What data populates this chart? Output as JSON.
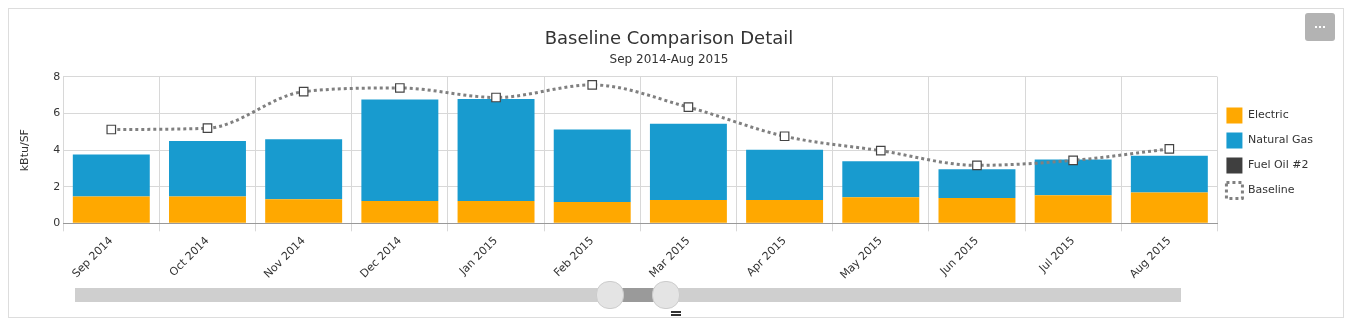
{
  "chart_data": {
    "type": "bar",
    "title": "Baseline Comparison Detail",
    "subtitle": "Sep 2014-Aug 2015",
    "ylabel": "kBtu/SF",
    "categories": [
      "Sep 2014",
      "Oct 2014",
      "Nov 2014",
      "Dec 2014",
      "Jan 2015",
      "Feb 2015",
      "Mar 2015",
      "Apr 2015",
      "May 2015",
      "Jun 2015",
      "Jul 2015",
      "Aug 2015"
    ],
    "stacked": true,
    "series": [
      {
        "name": "Electric",
        "color": "#ffa800",
        "values": [
          1.47,
          1.47,
          1.32,
          1.22,
          1.22,
          1.16,
          1.27,
          1.27,
          1.43,
          1.38,
          1.53,
          1.69
        ]
      },
      {
        "name": "Natural Gas",
        "color": "#189bcf",
        "values": [
          2.29,
          3.03,
          3.28,
          5.55,
          5.58,
          3.97,
          4.18,
          2.75,
          1.96,
          1.58,
          1.96,
          2.01
        ]
      },
      {
        "name": "Fuel Oil #2",
        "color": "#3f3f3f",
        "values": [
          0,
          0,
          0,
          0,
          0,
          0,
          0,
          0,
          0,
          0,
          0,
          0
        ]
      },
      {
        "name": "Baseline",
        "type": "line",
        "color": "#808080",
        "line_style": "dotted",
        "marker": "square",
        "values": [
          5.13,
          5.2,
          7.2,
          7.4,
          6.88,
          7.57,
          6.35,
          4.76,
          3.97,
          3.17,
          3.44,
          4.07
        ]
      }
    ],
    "ylim": [
      0,
      8
    ],
    "yticks": [
      0,
      2,
      4,
      6,
      8
    ],
    "grid": true,
    "legend": "right"
  }
}
